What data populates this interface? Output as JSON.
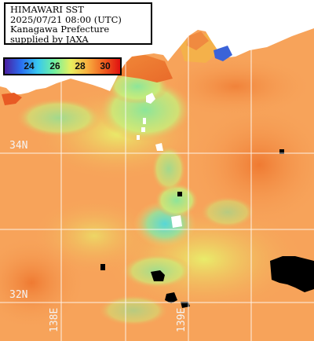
{
  "info": {
    "title": "HIMAWARI SST",
    "datetime": "2025/07/21 08:00 (UTC)",
    "region": "Kanagawa Prefecture",
    "credit": "supplied by JAXA"
  },
  "legend": {
    "ticks": [
      "24",
      "26",
      "28",
      "30"
    ],
    "range": [
      22.5,
      31.5
    ],
    "colors": [
      "#4a1fa0",
      "#2a6ff0",
      "#38c8f0",
      "#70f0a0",
      "#e8f060",
      "#f8b040",
      "#f06020",
      "#e01010"
    ]
  },
  "coords": {
    "lat_34": "34N",
    "lat_32": "32N",
    "lon_138": "138E",
    "lon_139": "139E"
  },
  "colors": {
    "land": "#ffffff",
    "cloud": "#000000",
    "warm_sea": "#f7a35a",
    "cool_sea": "#8ce59a",
    "grid": "#ffffff"
  }
}
